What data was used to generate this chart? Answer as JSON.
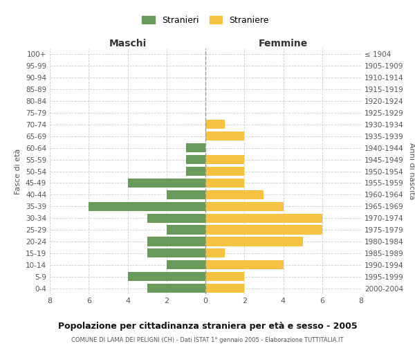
{
  "age_groups": [
    "100+",
    "95-99",
    "90-94",
    "85-89",
    "80-84",
    "75-79",
    "70-74",
    "65-69",
    "60-64",
    "55-59",
    "50-54",
    "45-49",
    "40-44",
    "35-39",
    "30-34",
    "25-29",
    "20-24",
    "15-19",
    "10-14",
    "5-9",
    "0-4"
  ],
  "birth_years": [
    "≤ 1904",
    "1905-1909",
    "1910-1914",
    "1915-1919",
    "1920-1924",
    "1925-1929",
    "1930-1934",
    "1935-1939",
    "1940-1944",
    "1945-1949",
    "1950-1954",
    "1955-1959",
    "1960-1964",
    "1965-1969",
    "1970-1974",
    "1975-1979",
    "1980-1984",
    "1985-1989",
    "1990-1994",
    "1995-1999",
    "2000-2004"
  ],
  "maschi": [
    0,
    0,
    0,
    0,
    0,
    0,
    0,
    0,
    1,
    1,
    1,
    4,
    2,
    6,
    3,
    2,
    3,
    3,
    2,
    4,
    3
  ],
  "femmine": [
    0,
    0,
    0,
    0,
    0,
    0,
    1,
    2,
    0,
    2,
    2,
    2,
    3,
    4,
    6,
    6,
    5,
    1,
    4,
    2,
    2
  ],
  "maschi_color": "#6a9a5b",
  "femmine_color": "#f5c242",
  "title": "Popolazione per cittadinanza straniera per età e sesso - 2005",
  "subtitle": "COMUNE DI LAMA DEI PELIGNI (CH) - Dati ISTAT 1° gennaio 2005 - Elaborazione TUTTITALIA.IT",
  "xlabel_left": "Maschi",
  "xlabel_right": "Femmine",
  "ylabel_left": "Fasce di età",
  "ylabel_right": "Anni di nascita",
  "legend_stranieri": "Stranieri",
  "legend_straniere": "Straniere",
  "xlim": 8,
  "background_color": "#ffffff",
  "grid_color": "#cccccc",
  "center_line_color": "#999999"
}
